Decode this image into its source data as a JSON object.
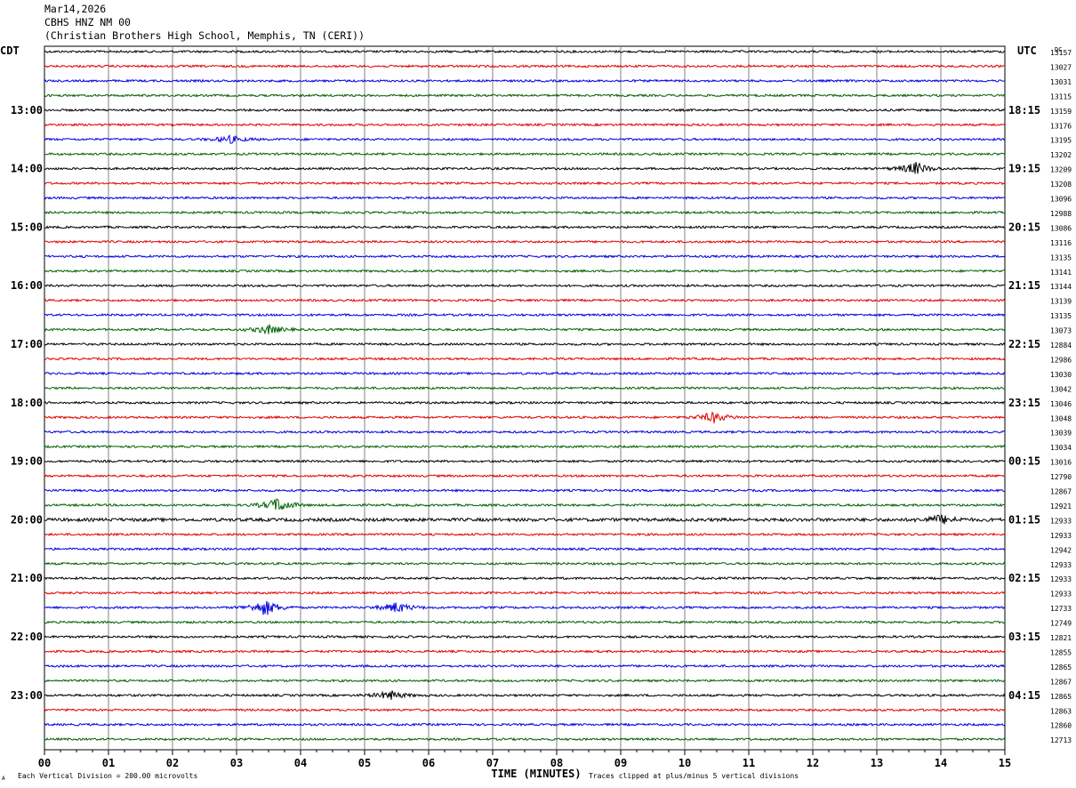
{
  "header": {
    "date": "Mar14,2026",
    "station": "CBHS HNZ NM 00",
    "location": "(Christian Brothers High School, Memphis, TN (CERI))"
  },
  "labels": {
    "left_tz": "CDT",
    "right_tz": "UTC",
    "dc": "DC",
    "xlabel": "TIME (MINUTES)",
    "footer_left": "Each Vertical Division =  200.00 microvolts",
    "footer_right": "Traces clipped at plus/minus 5 vertical divisions",
    "corner_mark": "A"
  },
  "colors": {
    "trace_cycle": [
      "#000000",
      "#e00000",
      "#0000e0",
      "#006000"
    ],
    "grid": "#808080"
  },
  "chart_data": {
    "type": "line",
    "subtype": "helicorder",
    "title": "CBHS HNZ NM 00",
    "xlabel": "TIME (MINUTES)",
    "xlim": [
      0,
      15
    ],
    "x_ticks": [
      "00",
      "01",
      "02",
      "03",
      "04",
      "05",
      "06",
      "07",
      "08",
      "09",
      "10",
      "11",
      "12",
      "13",
      "14",
      "15"
    ],
    "rows_per_hour": 4,
    "row_count": 48,
    "left_hour_labels": [
      "13:00",
      "14:00",
      "15:00",
      "16:00",
      "17:00",
      "18:00",
      "19:00",
      "20:00",
      "21:00",
      "22:00",
      "23:00"
    ],
    "right_hour_labels": [
      "18:15",
      "19:15",
      "20:15",
      "21:15",
      "22:15",
      "23:15",
      "00:15",
      "01:15",
      "02:15",
      "03:15",
      "04:15"
    ],
    "dc_offsets": [
      13157,
      13027,
      13031,
      13115,
      13159,
      13176,
      13195,
      13202,
      13209,
      13208,
      13096,
      12988,
      13086,
      13116,
      13135,
      13141,
      13144,
      13139,
      13135,
      13073,
      12884,
      12986,
      13030,
      13042,
      13046,
      13048,
      13039,
      13034,
      13016,
      12790,
      12867,
      12921,
      12933,
      12933,
      12942,
      12933,
      12933,
      12933,
      12733,
      12749,
      12821,
      12855,
      12865,
      12867,
      12865,
      12863,
      12860,
      12713
    ],
    "events": [
      {
        "row": 6,
        "minute": 2.9,
        "amp": 4
      },
      {
        "row": 8,
        "minute": 13.6,
        "amp": 7
      },
      {
        "row": 19,
        "minute": 3.5,
        "amp": 5
      },
      {
        "row": 25,
        "minute": 10.45,
        "amp": 6
      },
      {
        "row": 31,
        "minute": 3.65,
        "amp": 8
      },
      {
        "row": 32,
        "minute": 14.0,
        "amp": 5
      },
      {
        "row": 38,
        "minute": 3.45,
        "amp": 9
      },
      {
        "row": 38,
        "minute": 5.5,
        "amp": 6
      },
      {
        "row": 44,
        "minute": 5.4,
        "amp": 5
      }
    ]
  }
}
